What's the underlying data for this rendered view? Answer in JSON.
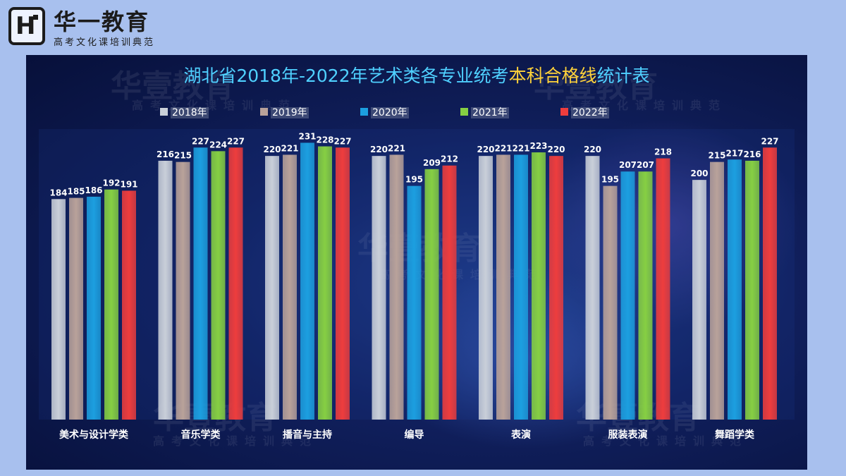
{
  "brand": {
    "name": "华一教育",
    "subtitle": "高考文化课培训典范",
    "watermark_name": "华壹教育",
    "watermark_sub": "高考文化课培训典范"
  },
  "title": {
    "part1": "湖北省2018年-2022年艺术类各专业统考",
    "part2": "本科合格线",
    "part3": "统计表",
    "color_main": "#4fd0ff",
    "color_highlight": "#ffd23a"
  },
  "chart_data": {
    "type": "bar",
    "categories": [
      "美术与设计学类",
      "音乐学类",
      "播音与主持",
      "编导",
      "表演",
      "服装表演",
      "舞蹈学类"
    ],
    "series": [
      {
        "name": "2018年",
        "color": "#c9cfd9",
        "values": [
          184,
          216,
          220,
          220,
          220,
          220,
          200
        ]
      },
      {
        "name": "2019年",
        "color": "#b9a29a",
        "values": [
          185,
          215,
          221,
          221,
          221,
          195,
          215
        ]
      },
      {
        "name": "2020年",
        "color": "#1c9fe0",
        "values": [
          186,
          227,
          231,
          195,
          221,
          207,
          217
        ]
      },
      {
        "name": "2021年",
        "color": "#86cf43",
        "values": [
          192,
          224,
          228,
          209,
          223,
          207,
          216
        ]
      },
      {
        "name": "2022年",
        "color": "#ee3d3d",
        "values": [
          191,
          227,
          227,
          212,
          220,
          218,
          227
        ]
      }
    ],
    "ylim": [
      0,
      240
    ],
    "legend_position": "top",
    "data_labels": true,
    "grid": false
  }
}
